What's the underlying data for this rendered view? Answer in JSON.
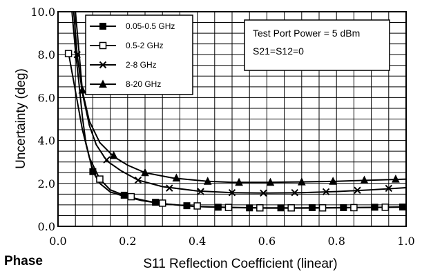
{
  "caption": "Phase",
  "chart_data": {
    "type": "line",
    "xlabel": "S11 Reflection Coefficient (linear)",
    "ylabel": "Uncertainty (deg)",
    "xlim": [
      0,
      1.0
    ],
    "ylim": [
      0,
      10.0
    ],
    "x_ticks": [
      "0.0",
      "0.2",
      "0.4",
      "0.6",
      "0.8",
      "1.0"
    ],
    "y_ticks": [
      "0.0",
      "2.0",
      "4.0",
      "6.0",
      "8.0",
      "10.0"
    ],
    "x_tick_values": [
      0,
      0.2,
      0.4,
      0.6,
      0.8,
      1.0
    ],
    "y_tick_values": [
      0,
      2,
      4,
      6,
      8,
      10
    ],
    "grid": true,
    "legend_position": "top-left",
    "annotation": [
      "Test Port Power = 5 dBm",
      "S21=S12=0"
    ],
    "series": [
      {
        "name": "0.05-0.5 GHz",
        "marker": "filled-square",
        "curve": [
          [
            0.04,
            10.0
          ],
          [
            0.05,
            8.2
          ],
          [
            0.06,
            6.7
          ],
          [
            0.07,
            5.1
          ],
          [
            0.08,
            3.9
          ],
          [
            0.1,
            2.55
          ],
          [
            0.12,
            2.0
          ],
          [
            0.15,
            1.6
          ],
          [
            0.19,
            1.4
          ],
          [
            0.24,
            1.2
          ],
          [
            0.3,
            1.05
          ],
          [
            0.4,
            0.92
          ],
          [
            0.5,
            0.88
          ],
          [
            0.6,
            0.86
          ],
          [
            0.7,
            0.86
          ],
          [
            0.8,
            0.87
          ],
          [
            0.9,
            0.88
          ],
          [
            1.0,
            0.9
          ]
        ],
        "markers": [
          [
            0.1,
            2.55
          ],
          [
            0.19,
            1.45
          ],
          [
            0.28,
            1.12
          ],
          [
            0.37,
            0.96
          ],
          [
            0.46,
            0.89
          ],
          [
            0.55,
            0.86
          ],
          [
            0.64,
            0.86
          ],
          [
            0.73,
            0.87
          ],
          [
            0.82,
            0.87
          ],
          [
            0.91,
            0.89
          ],
          [
            0.99,
            0.9
          ]
        ]
      },
      {
        "name": "0.5-2 GHz",
        "marker": "open-square",
        "curve": [
          [
            0.03,
            8.1
          ],
          [
            0.05,
            6.3
          ],
          [
            0.07,
            4.5
          ],
          [
            0.09,
            3.2
          ],
          [
            0.12,
            2.2
          ],
          [
            0.15,
            1.7
          ],
          [
            0.2,
            1.38
          ],
          [
            0.25,
            1.2
          ],
          [
            0.3,
            1.05
          ],
          [
            0.4,
            0.92
          ],
          [
            0.5,
            0.87
          ],
          [
            0.6,
            0.85
          ],
          [
            0.7,
            0.85
          ],
          [
            0.8,
            0.86
          ],
          [
            0.9,
            0.88
          ],
          [
            1.0,
            0.9
          ]
        ],
        "markers": [
          [
            0.03,
            8.05
          ],
          [
            0.12,
            2.2
          ],
          [
            0.21,
            1.38
          ],
          [
            0.3,
            1.08
          ],
          [
            0.4,
            0.95
          ],
          [
            0.49,
            0.88
          ],
          [
            0.58,
            0.86
          ],
          [
            0.67,
            0.86
          ],
          [
            0.76,
            0.86
          ],
          [
            0.85,
            0.87
          ],
          [
            0.94,
            0.89
          ]
        ]
      },
      {
        "name": "2-8 GHz",
        "marker": "x",
        "curve": [
          [
            0.045,
            10.0
          ],
          [
            0.055,
            8.0
          ],
          [
            0.07,
            6.2
          ],
          [
            0.09,
            4.7
          ],
          [
            0.11,
            3.8
          ],
          [
            0.14,
            3.05
          ],
          [
            0.18,
            2.6
          ],
          [
            0.23,
            2.15
          ],
          [
            0.3,
            1.85
          ],
          [
            0.4,
            1.65
          ],
          [
            0.5,
            1.57
          ],
          [
            0.6,
            1.55
          ],
          [
            0.7,
            1.57
          ],
          [
            0.8,
            1.62
          ],
          [
            0.9,
            1.7
          ],
          [
            1.0,
            1.8
          ]
        ],
        "markers": [
          [
            0.055,
            8.0
          ],
          [
            0.14,
            3.1
          ],
          [
            0.23,
            2.15
          ],
          [
            0.32,
            1.78
          ],
          [
            0.41,
            1.62
          ],
          [
            0.5,
            1.57
          ],
          [
            0.59,
            1.55
          ],
          [
            0.68,
            1.57
          ],
          [
            0.77,
            1.61
          ],
          [
            0.86,
            1.68
          ],
          [
            0.95,
            1.77
          ]
        ]
      },
      {
        "name": "8-20 GHz",
        "marker": "filled-triangle",
        "curve": [
          [
            0.05,
            10.0
          ],
          [
            0.06,
            8.2
          ],
          [
            0.07,
            6.3
          ],
          [
            0.09,
            4.9
          ],
          [
            0.12,
            3.9
          ],
          [
            0.16,
            3.25
          ],
          [
            0.2,
            2.85
          ],
          [
            0.25,
            2.5
          ],
          [
            0.33,
            2.25
          ],
          [
            0.43,
            2.1
          ],
          [
            0.5,
            2.05
          ],
          [
            0.6,
            2.05
          ],
          [
            0.7,
            2.07
          ],
          [
            0.8,
            2.1
          ],
          [
            0.9,
            2.15
          ],
          [
            1.0,
            2.2
          ]
        ],
        "markers": [
          [
            0.07,
            6.35
          ],
          [
            0.16,
            3.3
          ],
          [
            0.25,
            2.5
          ],
          [
            0.34,
            2.25
          ],
          [
            0.43,
            2.1
          ],
          [
            0.52,
            2.05
          ],
          [
            0.61,
            2.05
          ],
          [
            0.7,
            2.07
          ],
          [
            0.79,
            2.1
          ],
          [
            0.88,
            2.15
          ],
          [
            0.97,
            2.2
          ]
        ]
      }
    ]
  }
}
